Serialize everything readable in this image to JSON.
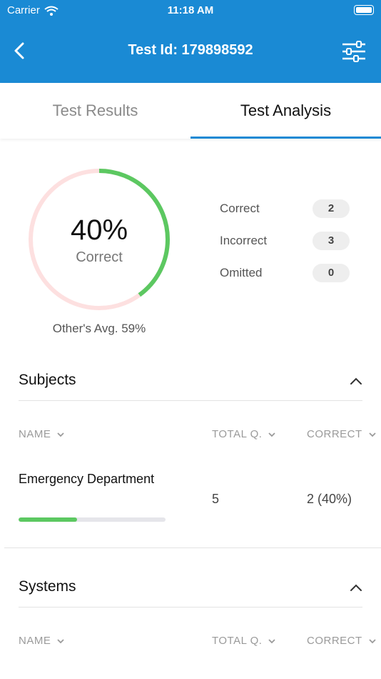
{
  "status_bar": {
    "carrier": "Carrier",
    "time": "11:18 AM"
  },
  "header": {
    "title": "Test Id: 179898592",
    "back_icon": "chevron-left-icon",
    "filter_icon": "sliders-icon"
  },
  "tabs": [
    {
      "label": "Test Results",
      "active": false
    },
    {
      "label": "Test Analysis",
      "active": true
    }
  ],
  "summary": {
    "percent_correct": "40%",
    "percent_label": "Correct",
    "correct_fraction": 0.4,
    "others_avg": "Other's Avg. 59%",
    "colors": {
      "correct": "#5cc861",
      "remainder": "#fde0e0",
      "accent": "#1a8ad4"
    },
    "stats": [
      {
        "label": "Correct",
        "value": "2"
      },
      {
        "label": "Incorrect",
        "value": "3"
      },
      {
        "label": "Omitted",
        "value": "0"
      }
    ]
  },
  "subjects": {
    "title": "Subjects",
    "columns": {
      "name": "NAME",
      "total": "TOTAL Q.",
      "correct": "CORRECT"
    },
    "rows": [
      {
        "name": "Emergency Department",
        "total": "5",
        "correct": "2 (40%)",
        "progress": 0.4
      }
    ]
  },
  "systems": {
    "title": "Systems",
    "columns": {
      "name": "NAME",
      "total": "TOTAL Q.",
      "correct": "CORRECT"
    }
  }
}
